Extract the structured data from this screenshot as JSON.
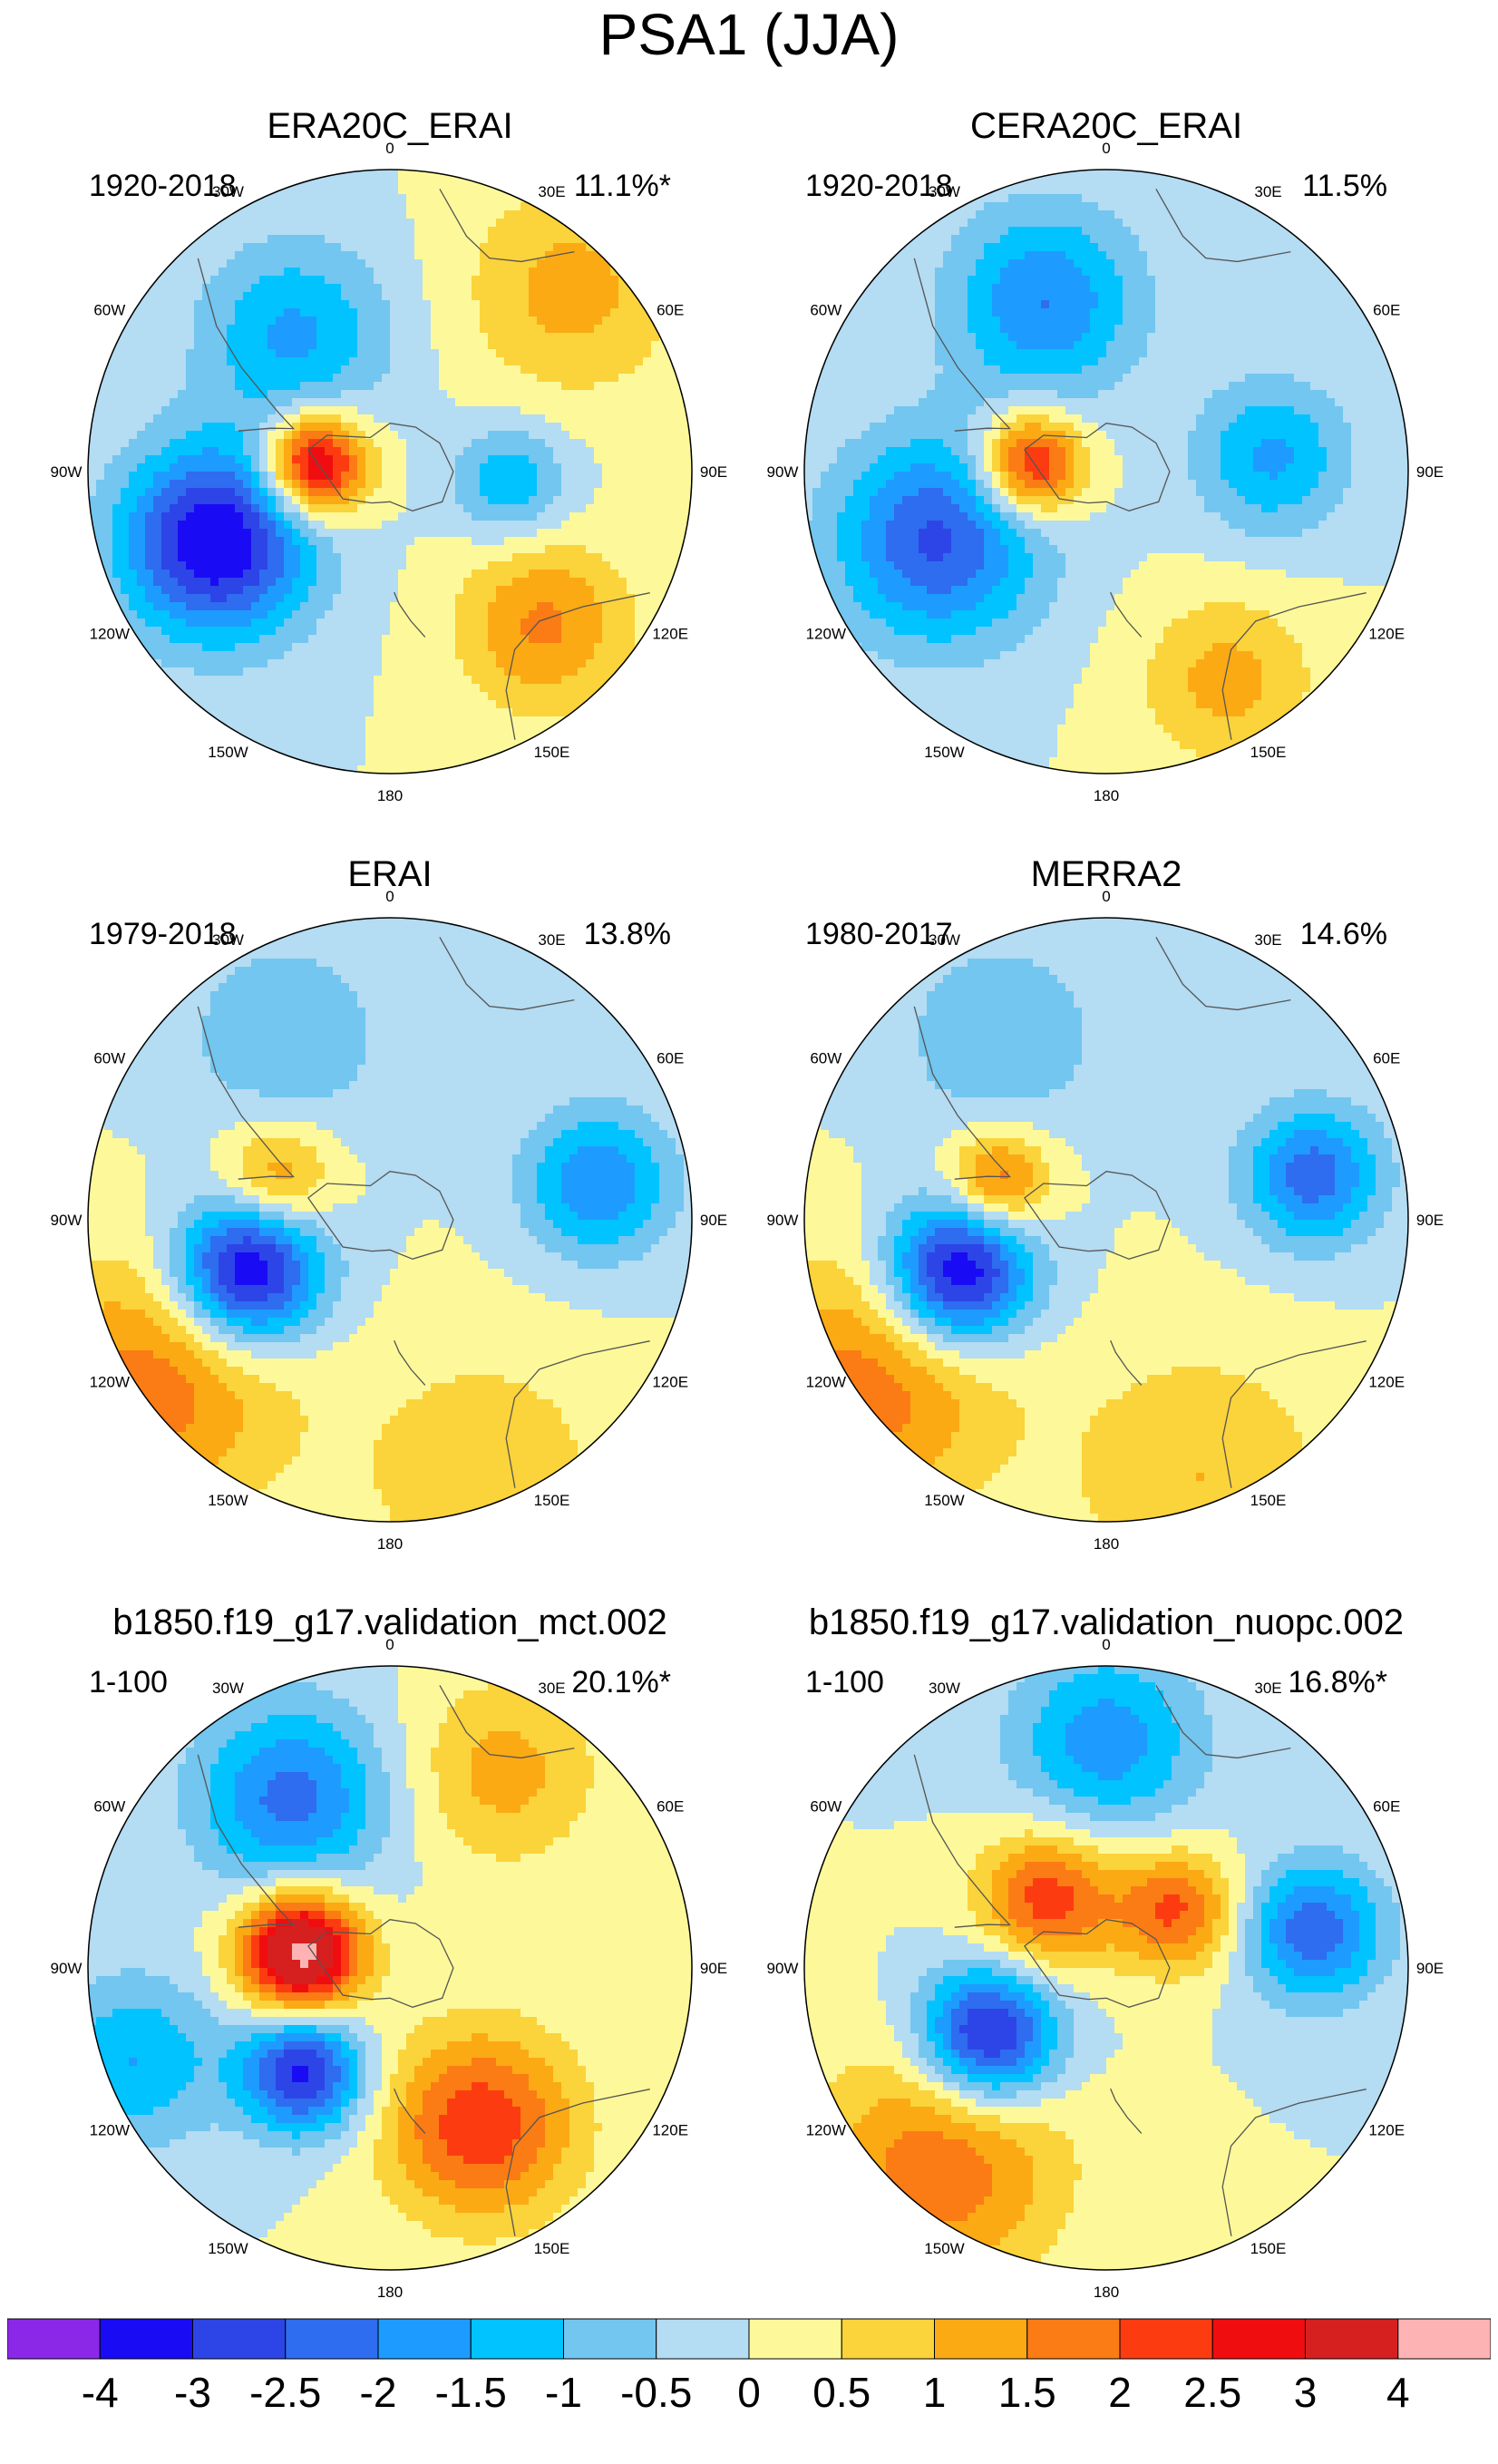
{
  "figure": {
    "title": "PSA1 (JJA)"
  },
  "chart_data": {
    "type": "heatmap",
    "projection": "south-polar-stereographic",
    "panels": [
      {
        "title": "ERA20C_ERAI",
        "period": "1920-2018",
        "variance": "11.1%*",
        "features": [
          {
            "lon": -85,
            "colat": 0.25,
            "amp": 3.6,
            "spread": 0.12
          },
          {
            "lon": -112,
            "colat": 0.62,
            "amp": -3.6,
            "spread": 0.22
          },
          {
            "lon": -35,
            "colat": 0.55,
            "amp": -1.6,
            "spread": 0.22
          },
          {
            "lon": 95,
            "colat": 0.4,
            "amp": -1.5,
            "spread": 0.13
          },
          {
            "lon": 135,
            "colat": 0.72,
            "amp": 1.6,
            "spread": 0.2
          },
          {
            "lon": 45,
            "colat": 0.85,
            "amp": 1.2,
            "spread": 0.25
          }
        ]
      },
      {
        "title": "CERA20C_ERAI",
        "period": "1920-2018",
        "variance": "11.5%",
        "features": [
          {
            "lon": -85,
            "colat": 0.25,
            "amp": 3.0,
            "spread": 0.12
          },
          {
            "lon": -112,
            "colat": 0.6,
            "amp": -2.6,
            "spread": 0.24
          },
          {
            "lon": -20,
            "colat": 0.6,
            "amp": -2.0,
            "spread": 0.22
          },
          {
            "lon": 85,
            "colat": 0.55,
            "amp": -1.6,
            "spread": 0.18
          },
          {
            "lon": 150,
            "colat": 0.8,
            "amp": 1.2,
            "spread": 0.2
          }
        ]
      },
      {
        "title": "ERAI",
        "period": "1979-2018",
        "variance": "13.8%",
        "features": [
          {
            "lon": -110,
            "colat": 0.5,
            "amp": -3.8,
            "spread": 0.17
          },
          {
            "lon": -70,
            "colat": 0.4,
            "amp": 1.7,
            "spread": 0.13
          },
          {
            "lon": -125,
            "colat": 0.95,
            "amp": 1.8,
            "spread": 0.3
          },
          {
            "lon": 80,
            "colat": 0.7,
            "amp": -2.0,
            "spread": 0.17
          },
          {
            "lon": -30,
            "colat": 0.7,
            "amp": -0.9,
            "spread": 0.25
          },
          {
            "lon": 160,
            "colat": 0.9,
            "amp": 0.9,
            "spread": 0.3
          }
        ]
      },
      {
        "title": "MERRA2",
        "period": "1980-2017",
        "variance": "14.6%",
        "features": [
          {
            "lon": -110,
            "colat": 0.52,
            "amp": -3.8,
            "spread": 0.17
          },
          {
            "lon": -70,
            "colat": 0.38,
            "amp": 2.1,
            "spread": 0.12
          },
          {
            "lon": -125,
            "colat": 0.95,
            "amp": 1.8,
            "spread": 0.3
          },
          {
            "lon": 78,
            "colat": 0.7,
            "amp": -2.3,
            "spread": 0.16
          },
          {
            "lon": -30,
            "colat": 0.7,
            "amp": -0.9,
            "spread": 0.25
          },
          {
            "lon": 160,
            "colat": 0.9,
            "amp": 1.0,
            "spread": 0.3
          }
        ]
      },
      {
        "title": "b1850.f19_g17.validation_mct.002",
        "period": "1-100",
        "variance": "20.1%*",
        "features": [
          {
            "lon": -80,
            "colat": 0.3,
            "amp": 4.4,
            "spread": 0.14
          },
          {
            "lon": -140,
            "colat": 0.45,
            "amp": -3.2,
            "spread": 0.14
          },
          {
            "lon": -30,
            "colat": 0.65,
            "amp": -2.2,
            "spread": 0.22
          },
          {
            "lon": 150,
            "colat": 0.6,
            "amp": 2.4,
            "spread": 0.22
          },
          {
            "lon": 30,
            "colat": 0.75,
            "amp": 1.2,
            "spread": 0.22
          },
          {
            "lon": -110,
            "colat": 0.9,
            "amp": -1.5,
            "spread": 0.2
          }
        ]
      },
      {
        "title": "b1850.f19_g17.validation_nuopc.002",
        "period": "1-100",
        "variance": "16.8%*",
        "features": [
          {
            "lon": -120,
            "colat": 0.45,
            "amp": -3.5,
            "spread": 0.16
          },
          {
            "lon": -40,
            "colat": 0.3,
            "amp": 2.3,
            "spread": 0.16
          },
          {
            "lon": 50,
            "colat": 0.3,
            "amp": 2.1,
            "spread": 0.14
          },
          {
            "lon": -140,
            "colat": 0.85,
            "amp": 1.9,
            "spread": 0.28
          },
          {
            "lon": 80,
            "colat": 0.7,
            "amp": -2.4,
            "spread": 0.16
          },
          {
            "lon": 0,
            "colat": 0.75,
            "amp": -1.8,
            "spread": 0.22
          }
        ]
      }
    ],
    "longitude_labels": [
      "0",
      "30E",
      "60E",
      "90E",
      "120E",
      "150E",
      "180",
      "150W",
      "120W",
      "90W",
      "60W",
      "30W"
    ],
    "colorbar": {
      "levels": [
        "-4",
        "-3",
        "-2.5",
        "-2",
        "-1.5",
        "-1",
        "-0.5",
        "0",
        "0.5",
        "1",
        "1.5",
        "2",
        "2.5",
        "3",
        "4"
      ],
      "thresholds": [
        -4,
        -3,
        -2.5,
        -2,
        -1.5,
        -1,
        -0.5,
        0,
        0.5,
        1,
        1.5,
        2,
        2.5,
        3,
        4
      ],
      "colors": [
        "#8b28e8",
        "#1a0bf5",
        "#2d45e6",
        "#2e6cf0",
        "#1e9bff",
        "#00c3ff",
        "#72c6f0",
        "#b4dcf2",
        "#fdf99a",
        "#fbd33a",
        "#fbaa14",
        "#fb7c14",
        "#fc3c10",
        "#f00d10",
        "#d6201f",
        "#fdb3b3"
      ]
    }
  }
}
